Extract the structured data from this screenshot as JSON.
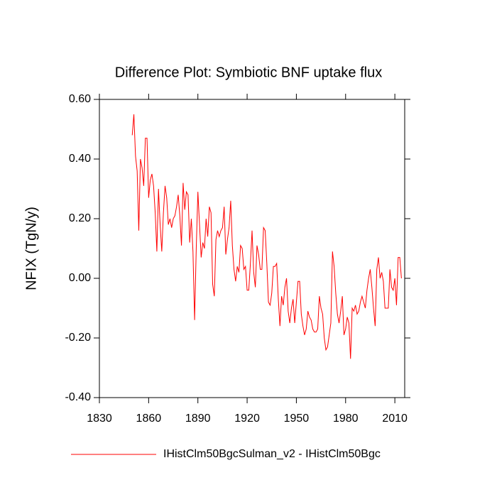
{
  "chart_data": {
    "type": "line",
    "title": "Difference Plot: Symbiotic BNF uptake flux",
    "y_label": "NFIX  (TgN/y)",
    "x": [
      1850,
      1851,
      1852,
      1853,
      1854,
      1855,
      1856,
      1857,
      1858,
      1859,
      1860,
      1861,
      1862,
      1863,
      1864,
      1865,
      1866,
      1867,
      1868,
      1869,
      1870,
      1871,
      1872,
      1873,
      1874,
      1875,
      1876,
      1877,
      1878,
      1879,
      1880,
      1881,
      1882,
      1883,
      1884,
      1885,
      1886,
      1887,
      1888,
      1889,
      1890,
      1891,
      1892,
      1893,
      1894,
      1895,
      1896,
      1897,
      1898,
      1899,
      1900,
      1901,
      1902,
      1903,
      1904,
      1905,
      1906,
      1907,
      1908,
      1909,
      1910,
      1911,
      1912,
      1913,
      1914,
      1915,
      1916,
      1917,
      1918,
      1919,
      1920,
      1921,
      1922,
      1923,
      1924,
      1925,
      1926,
      1927,
      1928,
      1929,
      1930,
      1931,
      1932,
      1933,
      1934,
      1935,
      1936,
      1937,
      1938,
      1939,
      1940,
      1941,
      1942,
      1943,
      1944,
      1945,
      1946,
      1947,
      1948,
      1949,
      1950,
      1951,
      1952,
      1953,
      1954,
      1955,
      1956,
      1957,
      1958,
      1959,
      1960,
      1961,
      1962,
      1963,
      1964,
      1965,
      1966,
      1967,
      1968,
      1969,
      1970,
      1971,
      1972,
      1973,
      1974,
      1975,
      1976,
      1977,
      1978,
      1979,
      1980,
      1981,
      1982,
      1983,
      1984,
      1985,
      1986,
      1987,
      1988,
      1989,
      1990,
      1991,
      1992,
      1993,
      1994,
      1995,
      1996,
      1997,
      1998,
      1999,
      2000,
      2001,
      2002,
      2003,
      2004,
      2005,
      2006,
      2007,
      2008,
      2009,
      2010,
      2011,
      2012,
      2013,
      2014
    ],
    "series": [
      {
        "name": "IHistClm50BgcSulman_v2 - IHistClm50Bgc",
        "color": "#ff0000",
        "values": [
          0.48,
          0.55,
          0.41,
          0.36,
          0.16,
          0.4,
          0.37,
          0.31,
          0.47,
          0.47,
          0.27,
          0.33,
          0.35,
          0.31,
          0.22,
          0.09,
          0.3,
          0.18,
          0.09,
          0.22,
          0.31,
          0.27,
          0.18,
          0.2,
          0.17,
          0.2,
          0.21,
          0.24,
          0.28,
          0.21,
          0.11,
          0.32,
          0.23,
          0.29,
          0.28,
          0.12,
          0.2,
          0.09,
          -0.14,
          0.1,
          0.29,
          0.18,
          0.07,
          0.12,
          0.1,
          0.2,
          0.14,
          0.24,
          0.22,
          -0.02,
          -0.06,
          0.13,
          0.16,
          0.14,
          0.16,
          0.17,
          0.24,
          0.08,
          0.13,
          0.17,
          0.26,
          0.11,
          0.03,
          -0.01,
          0.04,
          0.02,
          0.11,
          0.1,
          0.03,
          0.04,
          -0.04,
          -0.04,
          0.05,
          0.16,
          0.02,
          -0.03,
          0.11,
          0.08,
          0.03,
          0.03,
          0.17,
          0.16,
          0.05,
          -0.08,
          -0.09,
          -0.05,
          0.04,
          0.04,
          0.05,
          -0.07,
          -0.16,
          -0.06,
          -0.09,
          -0.03,
          0.0,
          -0.11,
          -0.15,
          -0.1,
          -0.07,
          -0.15,
          -0.08,
          -0.01,
          -0.01,
          -0.12,
          -0.16,
          -0.19,
          -0.17,
          -0.11,
          -0.13,
          -0.14,
          -0.17,
          -0.18,
          -0.18,
          -0.17,
          -0.06,
          -0.1,
          -0.12,
          -0.2,
          -0.24,
          -0.23,
          -0.19,
          -0.15,
          0.09,
          0.04,
          -0.05,
          -0.12,
          -0.15,
          -0.11,
          -0.06,
          -0.19,
          -0.17,
          -0.13,
          -0.15,
          -0.27,
          -0.1,
          -0.11,
          -0.09,
          -0.12,
          -0.11,
          -0.08,
          -0.06,
          -0.08,
          -0.1,
          -0.04,
          0.0,
          0.03,
          -0.03,
          -0.1,
          -0.16,
          0.03,
          0.07,
          0.0,
          0.02,
          -0.01,
          -0.1,
          -0.1,
          -0.1,
          0.03,
          -0.03,
          -0.04,
          0.0,
          -0.09,
          0.07,
          0.07,
          0.0
        ]
      }
    ],
    "xlim": [
      1830,
      2016
    ],
    "xticks": [
      1830,
      1860,
      1890,
      1920,
      1950,
      1980,
      2010
    ],
    "ylim": [
      -0.4,
      0.6
    ],
    "yticks": [
      {
        "value": 0.6,
        "label": "0.60"
      },
      {
        "value": 0.4,
        "label": "0.40"
      },
      {
        "value": 0.2,
        "label": "0.20"
      },
      {
        "value": 0,
        "label": "0.00"
      },
      {
        "value": -0.2,
        "label": "-0.20"
      },
      {
        "value": -0.4,
        "label": "-0.40"
      }
    ],
    "grid": false,
    "legend": "bottom"
  }
}
